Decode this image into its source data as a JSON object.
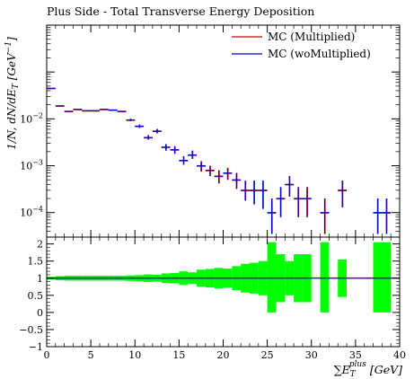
{
  "chart_data": {
    "type": "scatter",
    "title": "Plus Side - Total Transverse Energy Deposition",
    "ylabel": "1/N, dN/dE_T [GeV^-1]",
    "xlabel_html": "∑E_T^plus [GeV]",
    "xlabel_main": "∑E",
    "xlabel_sub": "T",
    "xlabel_sup": "plus",
    "xlabel_unit": "[GeV]",
    "xlim": [
      0,
      40
    ],
    "ylim_log": [
      3e-05,
      1.0
    ],
    "ratio_ylim": [
      -1,
      2.2
    ],
    "legend_position": "top-right",
    "series": [
      {
        "name": "MC (Multiplied)",
        "color": "#cc0000"
      },
      {
        "name": "MC (woMultiplied)",
        "color": "#0000cc"
      }
    ],
    "x_ticks": [
      "0",
      "5",
      "10",
      "15",
      "20",
      "25",
      "30",
      "35",
      "40"
    ],
    "y_ticks_main": [
      "10^-4",
      "10^-3",
      "10^-2"
    ],
    "y_ticks_main_vals": [
      0.0001,
      0.001,
      0.01
    ],
    "y_ticks_ratio": [
      "2",
      "1.5",
      "1",
      "0.5",
      "0",
      "-0.5",
      "-1"
    ],
    "y_ticks_ratio_vals": [
      2,
      1.5,
      1,
      0.5,
      0,
      -0.5,
      -1
    ],
    "points": [
      {
        "x": 0.5,
        "y": 0.045,
        "lo": 0.045,
        "hi": 0.045
      },
      {
        "x": 1.5,
        "y": 0.019,
        "lo": 0.019,
        "hi": 0.019
      },
      {
        "x": 2.5,
        "y": 0.0145,
        "lo": 0.0145,
        "hi": 0.0145
      },
      {
        "x": 3.5,
        "y": 0.016,
        "lo": 0.016,
        "hi": 0.016
      },
      {
        "x": 4.5,
        "y": 0.015,
        "lo": 0.015,
        "hi": 0.015
      },
      {
        "x": 5.5,
        "y": 0.015,
        "lo": 0.015,
        "hi": 0.015
      },
      {
        "x": 6.5,
        "y": 0.016,
        "lo": 0.016,
        "hi": 0.016
      },
      {
        "x": 7.5,
        "y": 0.0155,
        "lo": 0.0155,
        "hi": 0.0155
      },
      {
        "x": 8.5,
        "y": 0.0145,
        "lo": 0.0145,
        "hi": 0.0145
      },
      {
        "x": 9.5,
        "y": 0.0095,
        "lo": 0.0089,
        "hi": 0.0101
      },
      {
        "x": 10.5,
        "y": 0.007,
        "lo": 0.0064,
        "hi": 0.0076
      },
      {
        "x": 11.5,
        "y": 0.004,
        "lo": 0.0036,
        "hi": 0.0045
      },
      {
        "x": 12.5,
        "y": 0.0055,
        "lo": 0.0049,
        "hi": 0.0061
      },
      {
        "x": 13.5,
        "y": 0.0025,
        "lo": 0.0021,
        "hi": 0.0029
      },
      {
        "x": 14.5,
        "y": 0.0022,
        "lo": 0.0018,
        "hi": 0.0026
      },
      {
        "x": 15.5,
        "y": 0.0013,
        "lo": 0.00105,
        "hi": 0.0016
      },
      {
        "x": 16.5,
        "y": 0.0017,
        "lo": 0.0014,
        "hi": 0.0021
      },
      {
        "x": 17.5,
        "y": 0.001,
        "lo": 0.00075,
        "hi": 0.00125
      },
      {
        "x": 18.5,
        "y": 0.0008,
        "lo": 0.0006,
        "hi": 0.001
      },
      {
        "x": 19.5,
        "y": 0.0006,
        "lo": 0.00042,
        "hi": 0.0008
      },
      {
        "x": 20.5,
        "y": 0.0007,
        "lo": 0.0005,
        "hi": 0.0009
      },
      {
        "x": 21.5,
        "y": 0.0005,
        "lo": 0.00032,
        "hi": 0.0007
      },
      {
        "x": 22.5,
        "y": 0.0003,
        "lo": 0.00018,
        "hi": 0.00048
      },
      {
        "x": 23.5,
        "y": 0.0003,
        "lo": 0.00015,
        "hi": 0.00048
      },
      {
        "x": 24.5,
        "y": 0.0003,
        "lo": 0.00012,
        "hi": 0.00048
      },
      {
        "x": 25.5,
        "y": 0.0001,
        "lo": 3.5e-05,
        "hi": 0.0002
      },
      {
        "x": 26.5,
        "y": 0.0002,
        "lo": 8e-05,
        "hi": 0.00035
      },
      {
        "x": 27.5,
        "y": 0.0004,
        "lo": 0.00022,
        "hi": 0.0006
      },
      {
        "x": 28.5,
        "y": 0.0002,
        "lo": 8e-05,
        "hi": 0.00035
      },
      {
        "x": 29.5,
        "y": 0.0002,
        "lo": 8e-05,
        "hi": 0.00035
      },
      {
        "x": 31.5,
        "y": 0.0001,
        "lo": 3.5e-05,
        "hi": 0.0002
      },
      {
        "x": 33.5,
        "y": 0.0003,
        "lo": 0.00013,
        "hi": 0.00048
      },
      {
        "x": 37.5,
        "y": 0.0001,
        "lo": 3.5e-05,
        "hi": 0.0002
      },
      {
        "x": 38.5,
        "y": 0.0001,
        "lo": 3.5e-05,
        "hi": 0.0002
      }
    ],
    "ratio_bands": [
      {
        "x0": 0,
        "x1": 1,
        "lo": 0.96,
        "hi": 1.04
      },
      {
        "x0": 1,
        "x1": 2,
        "lo": 0.94,
        "hi": 1.06
      },
      {
        "x0": 2,
        "x1": 3,
        "lo": 0.93,
        "hi": 1.07
      },
      {
        "x0": 3,
        "x1": 4,
        "lo": 0.93,
        "hi": 1.07
      },
      {
        "x0": 4,
        "x1": 5,
        "lo": 0.93,
        "hi": 1.07
      },
      {
        "x0": 5,
        "x1": 6,
        "lo": 0.93,
        "hi": 1.07
      },
      {
        "x0": 6,
        "x1": 7,
        "lo": 0.93,
        "hi": 1.07
      },
      {
        "x0": 7,
        "x1": 8,
        "lo": 0.93,
        "hi": 1.07
      },
      {
        "x0": 8,
        "x1": 9,
        "lo": 0.93,
        "hi": 1.07
      },
      {
        "x0": 9,
        "x1": 10,
        "lo": 0.92,
        "hi": 1.08
      },
      {
        "x0": 10,
        "x1": 11,
        "lo": 0.91,
        "hi": 1.09
      },
      {
        "x0": 11,
        "x1": 12,
        "lo": 0.89,
        "hi": 1.11
      },
      {
        "x0": 12,
        "x1": 13,
        "lo": 0.9,
        "hi": 1.1
      },
      {
        "x0": 13,
        "x1": 14,
        "lo": 0.86,
        "hi": 1.14
      },
      {
        "x0": 14,
        "x1": 15,
        "lo": 0.85,
        "hi": 1.15
      },
      {
        "x0": 15,
        "x1": 16,
        "lo": 0.8,
        "hi": 1.2
      },
      {
        "x0": 16,
        "x1": 17,
        "lo": 0.83,
        "hi": 1.17
      },
      {
        "x0": 17,
        "x1": 18,
        "lo": 0.75,
        "hi": 1.25
      },
      {
        "x0": 18,
        "x1": 19,
        "lo": 0.73,
        "hi": 1.27
      },
      {
        "x0": 19,
        "x1": 20,
        "lo": 0.7,
        "hi": 1.3
      },
      {
        "x0": 20,
        "x1": 21,
        "lo": 0.72,
        "hi": 1.28
      },
      {
        "x0": 21,
        "x1": 22,
        "lo": 0.65,
        "hi": 1.35
      },
      {
        "x0": 22,
        "x1": 23,
        "lo": 0.58,
        "hi": 1.42
      },
      {
        "x0": 23,
        "x1": 24,
        "lo": 0.55,
        "hi": 1.45
      },
      {
        "x0": 24,
        "x1": 25,
        "lo": 0.5,
        "hi": 1.5
      },
      {
        "x0": 25,
        "x1": 26,
        "lo": 0,
        "hi": 2.05
      },
      {
        "x0": 26,
        "x1": 27,
        "lo": 0.3,
        "hi": 1.7
      },
      {
        "x0": 27,
        "x1": 28,
        "lo": 0.5,
        "hi": 1.5
      },
      {
        "x0": 28,
        "x1": 29,
        "lo": 0.3,
        "hi": 1.7
      },
      {
        "x0": 29,
        "x1": 30,
        "lo": 0.3,
        "hi": 1.7
      },
      {
        "x0": 31,
        "x1": 32,
        "lo": 0,
        "hi": 2.05
      },
      {
        "x0": 33,
        "x1": 34,
        "lo": 0.45,
        "hi": 1.55
      },
      {
        "x0": 37,
        "x1": 39,
        "lo": 0,
        "hi": 2.05
      }
    ],
    "band_color": "#00ff00",
    "ratio_line_value": 1
  }
}
